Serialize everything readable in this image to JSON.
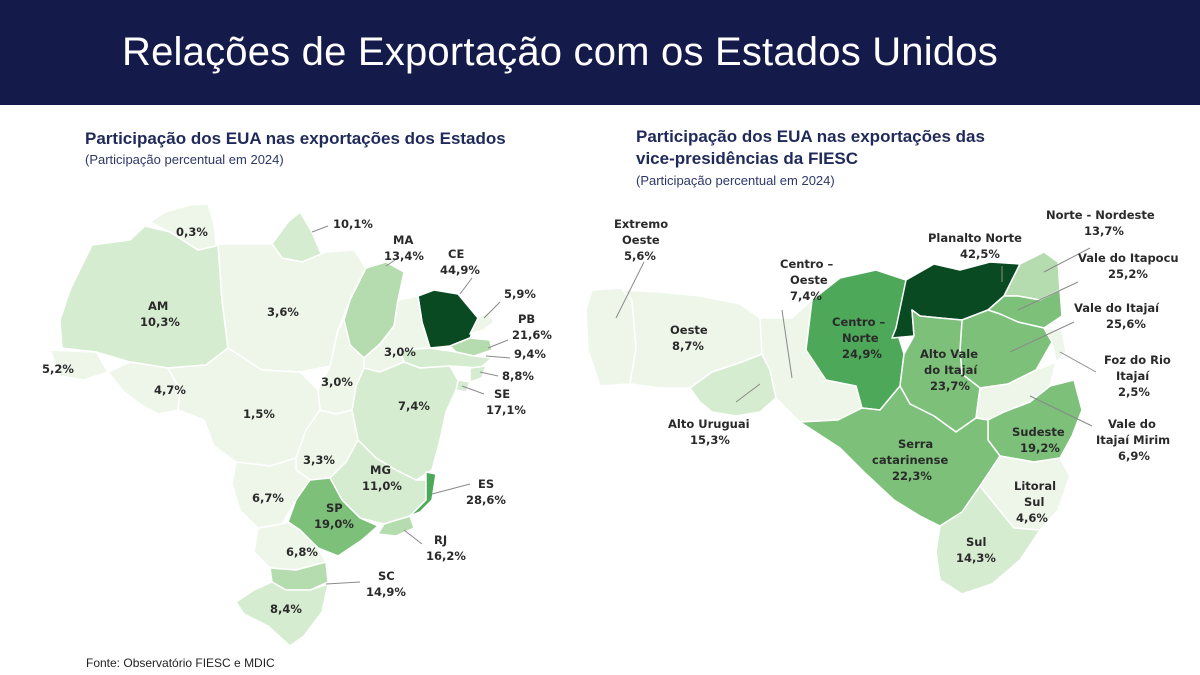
{
  "header": {
    "title": "Relações de Exportação com os Estados Unidos"
  },
  "left_panel": {
    "title": "Participação dos EUA nas exportações dos Estados",
    "subtitle": "(Participação percentual em 2024)",
    "labels": {
      "rr": "0,3%",
      "ap": "10,1%",
      "am_name": "AM",
      "am": "10,3%",
      "pa": "3,6%",
      "ma_name": "MA",
      "ma": "13,4%",
      "ce_name": "CE",
      "ce": "44,9%",
      "rn": "5,9%",
      "pb_name": "PB",
      "pb": "21,6%",
      "pe": "9,4%",
      "al": "8,8%",
      "se_name": "SE",
      "se": "17,1%",
      "pi": "3,0%",
      "to": "3,0%",
      "ac": "5,2%",
      "ro": "4,7%",
      "mt": "1,5%",
      "ba": "7,4%",
      "go": "3,3%",
      "mg_name": "MG",
      "mg": "11,0%",
      "es_name": "ES",
      "es": "28,6%",
      "ms": "6,7%",
      "sp_name": "SP",
      "sp": "19,0%",
      "rj_name": "RJ",
      "rj": "16,2%",
      "pr": "6,8%",
      "sc_name": "SC",
      "sc": "14,9%",
      "rs": "8,4%"
    }
  },
  "right_panel": {
    "title_line1": "Participação dos EUA nas exportações das",
    "title_line2": "vice-presidências da FIESC",
    "subtitle": "(Participação percentual em 2024)",
    "labels": {
      "eo1": "Extremo",
      "eo2": "Oeste",
      "eo_v": "5,6%",
      "co1": "Centro –",
      "co2": "Oeste",
      "co_v": "7,4%",
      "oe_name": "Oeste",
      "oe_v": "8,7%",
      "au_name": "Alto Uruguai",
      "au_v": "15,3%",
      "pn_name": "Planalto Norte",
      "pn_v": "42,5%",
      "nn_name": "Norte - Nordeste",
      "nn_v": "13,7%",
      "vi_name": "Vale do Itapocu",
      "vi_v": "25,2%",
      "vt_name": "Vale do Itajaí",
      "vt_v": "25,6%",
      "fr1": "Foz do Rio",
      "fr2": "Itajaí",
      "fr_v": "2,5%",
      "cn1": "Centro –",
      "cn2": "Norte",
      "cn_v": "24,9%",
      "av1": "Alto Vale",
      "av2": "do Itajaí",
      "av_v": "23,7%",
      "vm1": "Vale do",
      "vm2": "Itajaí Mirim",
      "vm_v": "6,9%",
      "sd_name": "Sudeste",
      "sd_v": "19,2%",
      "se1": "Serra",
      "se2": "catarinense",
      "se_v": "22,3%",
      "ls1": "Litoral",
      "ls2": "Sul",
      "ls_v": "4,6%",
      "su_name": "Sul",
      "su_v": "14,3%"
    }
  },
  "source": "Fonte: Observatório FIESC e MDIC",
  "colors": {
    "header_bg": "#141a4a",
    "shade_1": "#eef6ea",
    "shade_2": "#d6ecd0",
    "shade_3": "#b5dcae",
    "shade_4": "#7cc07a",
    "shade_5": "#4da85a",
    "shade_6": "#0a4a22"
  }
}
